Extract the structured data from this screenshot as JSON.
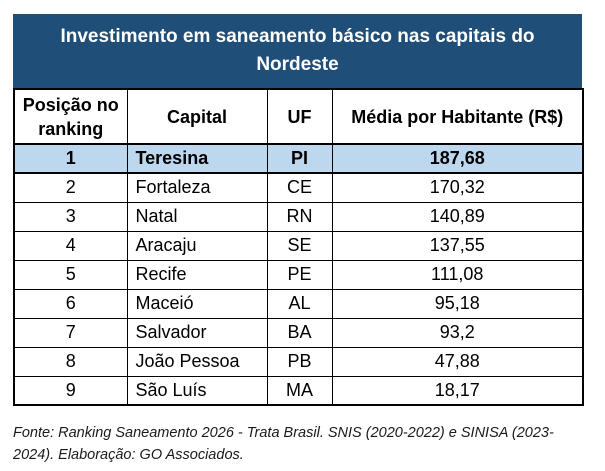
{
  "chart_data": {
    "type": "table",
    "title": "Investimento em saneamento básico nas capitais do Nordeste",
    "columns": [
      "Posição no ranking",
      "Capital",
      "UF",
      "Média por Habitante (R$)"
    ],
    "rows": [
      [
        "1",
        "Teresina",
        "PI",
        "187,68"
      ],
      [
        "2",
        "Fortaleza",
        "CE",
        "170,32"
      ],
      [
        "3",
        "Natal",
        "RN",
        "140,89"
      ],
      [
        "4",
        "Aracaju",
        "SE",
        "137,55"
      ],
      [
        "5",
        "Recife",
        "PE",
        "111,08"
      ],
      [
        "6",
        "Maceió",
        "AL",
        "95,18"
      ],
      [
        "7",
        "Salvador",
        "BA",
        "93,2"
      ],
      [
        "8",
        "João Pessoa",
        "PB",
        "47,88"
      ],
      [
        "9",
        "São Luís",
        "MA",
        "18,17"
      ]
    ],
    "values_numeric": [
      187.68,
      170.32,
      140.89,
      137.55,
      111.08,
      95.18,
      93.2,
      47.88,
      18.17
    ],
    "highlighted_rank": "1",
    "source": "Fonte: Ranking Saneamento 2026 - Trata Brasil. SNIS (2020-2022) e SINISA (2023-2024). Elaboração: GO Associados."
  },
  "title": {
    "line1": "Investimento em saneamento básico nas capitais do",
    "line2": "Nordeste"
  },
  "table": {
    "columns": [
      "Posição no ranking",
      "Capital",
      "UF",
      "Média por Habitante (R$)"
    ],
    "rows": [
      {
        "position": "1",
        "capital": "Teresina",
        "uf": "PI",
        "value": "187,68",
        "highlight": true
      },
      {
        "position": "2",
        "capital": "Fortaleza",
        "uf": "CE",
        "value": "170,32",
        "highlight": false
      },
      {
        "position": "3",
        "capital": "Natal",
        "uf": "RN",
        "value": "140,89",
        "highlight": false
      },
      {
        "position": "4",
        "capital": "Aracaju",
        "uf": "SE",
        "value": "137,55",
        "highlight": false
      },
      {
        "position": "5",
        "capital": "Recife",
        "uf": "PE",
        "value": "111,08",
        "highlight": false
      },
      {
        "position": "6",
        "capital": "Maceió",
        "uf": "AL",
        "value": "95,18",
        "highlight": false
      },
      {
        "position": "7",
        "capital": "Salvador",
        "uf": "BA",
        "value": "93,2",
        "highlight": false
      },
      {
        "position": "8",
        "capital": "João Pessoa",
        "uf": "PB",
        "value": "47,88",
        "highlight": false
      },
      {
        "position": "9",
        "capital": "São Luís",
        "uf": "MA",
        "value": "18,17",
        "highlight": false
      }
    ]
  },
  "footer": {
    "line1": "Fonte: Ranking Saneamento 2026 - Trata Brasil. SNIS (2020-2022) e SINISA (2023-",
    "line2": "2024). Elaboração: GO Associados."
  },
  "colors": {
    "title_bg": "#1F4E79",
    "title_text": "#FFFFFF",
    "highlight_bg": "#BDD7EE",
    "border": "#000000"
  }
}
